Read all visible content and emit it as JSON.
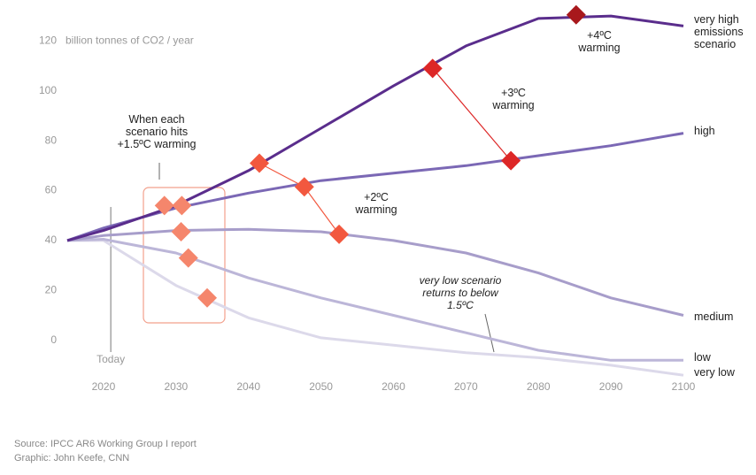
{
  "chart_data": {
    "type": "line",
    "y_axis_label": "billion tonnes of CO2 / year",
    "x": [
      2015,
      2020,
      2030,
      2040,
      2050,
      2060,
      2070,
      2080,
      2090,
      2100
    ],
    "series": [
      {
        "name": "very high emissions scenario",
        "color": "#5a2d8c",
        "values": [
          40,
          44,
          54,
          68,
          85,
          102,
          118,
          129,
          130,
          126
        ]
      },
      {
        "name": "high",
        "color": "#7b68b5",
        "values": [
          40,
          45,
          53,
          59,
          64,
          67,
          70,
          74,
          78,
          83
        ]
      },
      {
        "name": "medium",
        "color": "#a79dca",
        "values": [
          40,
          42,
          44,
          44.5,
          43.5,
          40,
          35,
          27,
          17,
          10
        ]
      },
      {
        "name": "low",
        "color": "#bcb6d8",
        "values": [
          40,
          40.5,
          35,
          25,
          17,
          10,
          3,
          -4,
          -8,
          -8
        ]
      },
      {
        "name": "very low",
        "color": "#dcd9ea",
        "values": [
          40,
          40,
          22,
          9,
          1,
          -2,
          -5,
          -7,
          -10,
          -14
        ]
      }
    ],
    "markers": [
      {
        "label": "When each scenario hits +1.5ºC warming",
        "color": "#f5866c",
        "connect": false,
        "x": [
          2028.4,
          2030.8,
          2030.7,
          2031.7,
          2034.3
        ],
        "y": [
          54,
          54,
          43.5,
          33,
          17
        ]
      },
      {
        "label": "+2ºC warming",
        "color": "#f2583f",
        "connect": true,
        "x": [
          2041.5,
          2047.7,
          2052.5
        ],
        "y": [
          71,
          61.5,
          42.5
        ]
      },
      {
        "label": "+3ºC warming",
        "color": "#dd2727",
        "connect": true,
        "x": [
          2065.4,
          2076.2
        ],
        "y": [
          109,
          72
        ]
      },
      {
        "label": "+4ºC warming",
        "color": "#a8181c",
        "connect": false,
        "x": [
          2085.2
        ],
        "y": [
          130.5
        ]
      }
    ],
    "today": {
      "label": "Today",
      "x": 2021
    },
    "note": "very low scenario returns to below 1.5ºC",
    "xlim": [
      2015,
      2100
    ],
    "ylim": [
      -15,
      135
    ],
    "xticks": [
      2020,
      2030,
      2040,
      2050,
      2060,
      2070,
      2080,
      2090,
      2100
    ],
    "yticks": [
      0,
      20,
      40,
      60,
      80,
      100,
      120
    ],
    "grid": false,
    "source": "Source: IPCC AR6 Working Group I report",
    "credit": "Graphic: John Keefe, CNN"
  }
}
